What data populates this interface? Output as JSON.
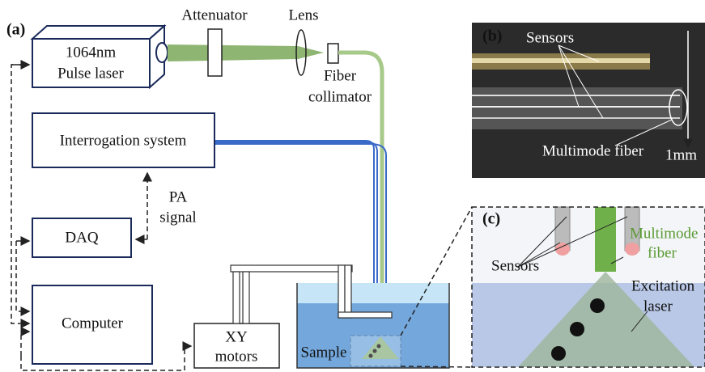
{
  "panel_a": {
    "label": "(a)",
    "laser": [
      "1064nm",
      "Pulse laser"
    ],
    "attenuator": "Attenuator",
    "lens": "Lens",
    "collimator": [
      "Fiber",
      "collimator"
    ],
    "interrogation": "Interrogation system",
    "pa_signal": [
      "PA",
      "signal"
    ],
    "daq": "DAQ",
    "computer": "Computer",
    "xy_motors": [
      "XY",
      "motors"
    ],
    "sample": "Sample"
  },
  "panel_b": {
    "label": "(b)",
    "sensors": "Sensors",
    "fiber": "Multimode fiber",
    "scale": "1mm"
  },
  "panel_c": {
    "label": "(c)",
    "sensors": "Sensors",
    "fiber": [
      "Multimode",
      "fiber"
    ],
    "excitation": [
      "Excitation",
      "laser"
    ]
  }
}
